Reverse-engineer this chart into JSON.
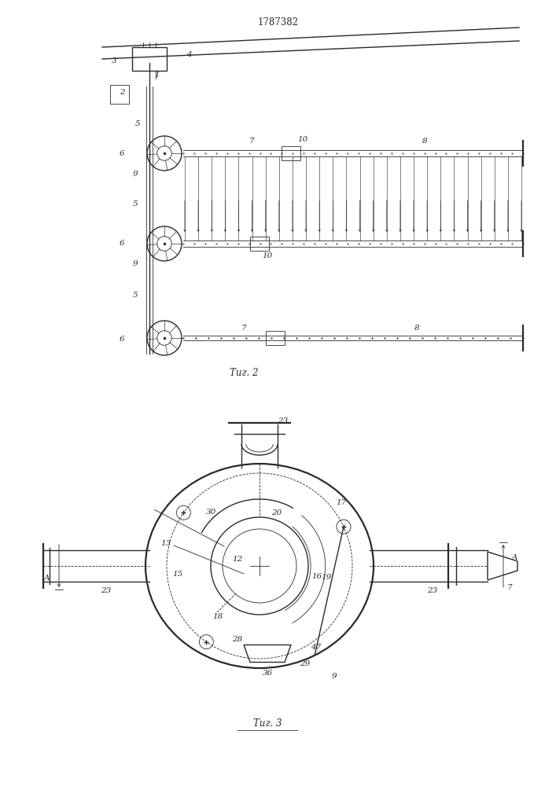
{
  "title": "1787382",
  "bg_color": "#ffffff",
  "line_color": "#2a2a2a",
  "lw_main": 1.0,
  "lw_thin": 0.6,
  "lw_thick": 1.6,
  "fs_label": 7.5,
  "fs_title": 8.5,
  "fig2_caption": "Τиг. 2",
  "fig3_caption": "Τиг. 3"
}
